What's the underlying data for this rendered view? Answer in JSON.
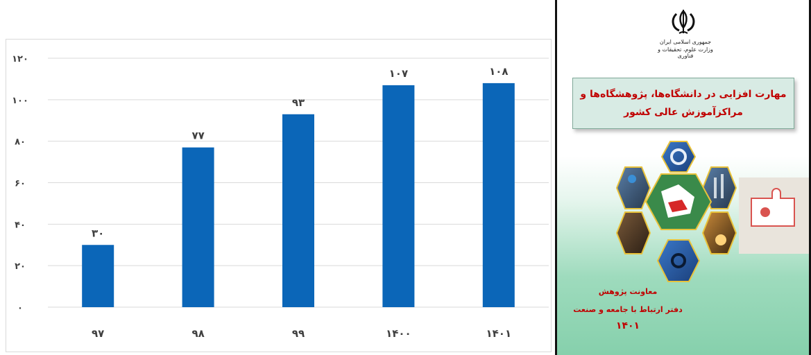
{
  "chart_data": {
    "type": "bar",
    "categories": [
      "۹۷",
      "۹۸",
      "۹۹",
      "۱۴۰۰",
      "۱۴۰۱"
    ],
    "values": [
      30,
      77,
      93,
      107,
      108
    ],
    "value_labels": [
      "۳۰",
      "۷۷",
      "۹۳",
      "۱۰۷",
      "۱۰۸"
    ],
    "y_ticks": [
      0,
      20,
      40,
      60,
      80,
      100,
      120
    ],
    "y_tick_labels": [
      "۰",
      "۲۰",
      "۴۰",
      "۶۰",
      "۸۰",
      "۱۰۰",
      "۱۲۰"
    ],
    "ylim": [
      0,
      120
    ],
    "grid": true,
    "bar_color": "#0b66b8",
    "title": "",
    "xlabel": "",
    "ylabel": ""
  },
  "cover": {
    "emblem_line1": "جمهوری اسلامی ایران",
    "emblem_line2": "وزارت علوم، تحقیقات و فناوری",
    "title_line1": "مهارت افزایی در دانشگاه‌ها، پژوهشگاه‌ها و",
    "title_line2": "مراکزآموزش عالی کشور",
    "footer_line1": "معاونت پژوهش",
    "footer_line2": "دفتر ارتباط با جامعه و صنعت",
    "footer_year": "۱۴۰۱",
    "accent_color": "#c00000",
    "images": [
      "gear-icon",
      "engineer-icon",
      "refinery-icon",
      "puzzle-icon",
      "workshop-icon",
      "welding-icon",
      "gears-hands-icon",
      "iran-map-icon"
    ]
  }
}
